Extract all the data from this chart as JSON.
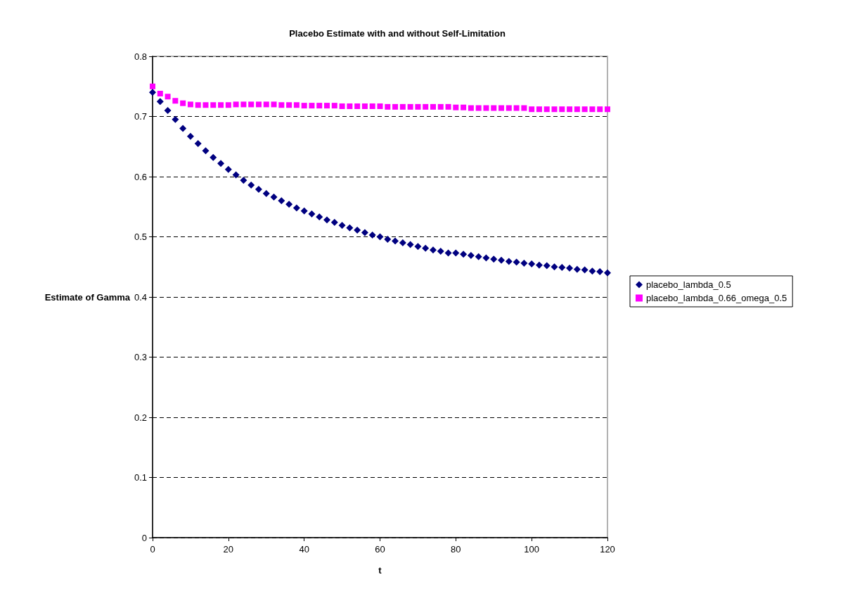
{
  "chart_data": {
    "type": "scatter",
    "title": "Placebo Estimate with and without Self-Limitation",
    "xlabel": "t",
    "ylabel": "Estimate of Gamma",
    "x": [
      0,
      2,
      4,
      6,
      8,
      10,
      12,
      14,
      16,
      18,
      20,
      22,
      24,
      26,
      28,
      30,
      32,
      34,
      36,
      38,
      40,
      42,
      44,
      46,
      48,
      50,
      52,
      54,
      56,
      58,
      60,
      62,
      64,
      66,
      68,
      70,
      72,
      74,
      76,
      78,
      80,
      82,
      84,
      86,
      88,
      90,
      92,
      94,
      96,
      98,
      100,
      102,
      104,
      106,
      108,
      110,
      112,
      114,
      116,
      118,
      120
    ],
    "series": [
      {
        "name": "placebo_lambda_0.5",
        "color": "#000080",
        "marker": "diamond",
        "values": [
          0.74,
          0.725,
          0.71,
          0.695,
          0.68,
          0.667,
          0.655,
          0.643,
          0.632,
          0.622,
          0.612,
          0.603,
          0.594,
          0.586,
          0.579,
          0.572,
          0.566,
          0.56,
          0.554,
          0.548,
          0.543,
          0.538,
          0.533,
          0.528,
          0.524,
          0.519,
          0.515,
          0.511,
          0.507,
          0.503,
          0.5,
          0.496,
          0.493,
          0.49,
          0.487,
          0.484,
          0.481,
          0.478,
          0.476,
          0.473,
          0.473,
          0.471,
          0.469,
          0.467,
          0.465,
          0.463,
          0.461,
          0.459,
          0.458,
          0.456,
          0.455,
          0.453,
          0.452,
          0.45,
          0.449,
          0.448,
          0.446,
          0.445,
          0.443,
          0.442,
          0.44
        ]
      },
      {
        "name": "placebo_lambda_0.66_omega_0.5",
        "color": "#ff00ff",
        "marker": "square",
        "values": [
          0.75,
          0.738,
          0.733,
          0.726,
          0.722,
          0.72,
          0.719,
          0.719,
          0.719,
          0.719,
          0.719,
          0.72,
          0.72,
          0.72,
          0.72,
          0.72,
          0.72,
          0.719,
          0.719,
          0.719,
          0.718,
          0.718,
          0.718,
          0.718,
          0.718,
          0.717,
          0.717,
          0.717,
          0.717,
          0.717,
          0.717,
          0.716,
          0.716,
          0.716,
          0.716,
          0.716,
          0.716,
          0.716,
          0.716,
          0.716,
          0.715,
          0.715,
          0.714,
          0.714,
          0.714,
          0.714,
          0.714,
          0.714,
          0.714,
          0.714,
          0.712,
          0.712,
          0.712,
          0.712,
          0.712,
          0.712,
          0.712,
          0.712,
          0.712,
          0.712,
          0.712
        ]
      }
    ],
    "xlim": [
      0,
      120
    ],
    "xticks": [
      0,
      20,
      40,
      60,
      80,
      100,
      120
    ],
    "ylim": [
      0,
      0.8
    ],
    "yticks": [
      0,
      0.1,
      0.2,
      0.3,
      0.4,
      0.5,
      0.6,
      0.7,
      0.8
    ],
    "grid": "y",
    "legend": "right"
  }
}
